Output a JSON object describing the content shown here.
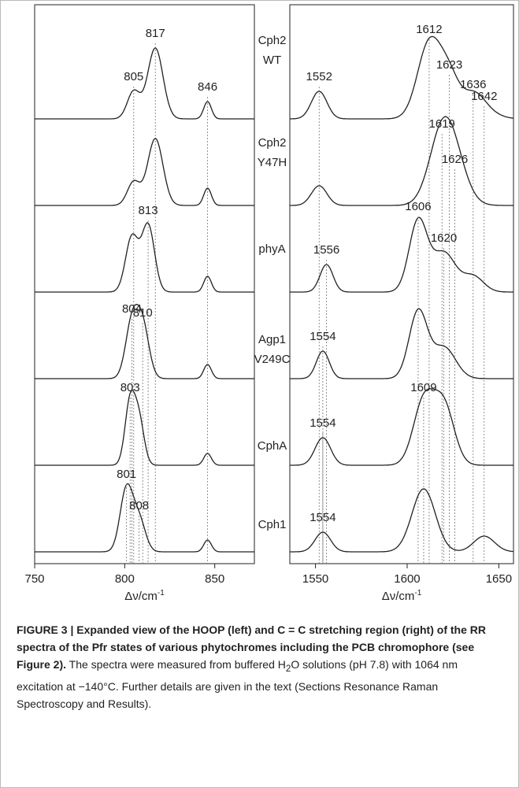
{
  "figure": {
    "samples": [
      {
        "lines": [
          "Cph2",
          "WT"
        ]
      },
      {
        "lines": [
          "Cph2",
          "Y47H"
        ]
      },
      {
        "lines": [
          "phyA"
        ]
      },
      {
        "lines": [
          "Agp1",
          "V249C"
        ]
      },
      {
        "lines": [
          "CphA"
        ]
      },
      {
        "lines": [
          "Cph1"
        ]
      }
    ],
    "panels": [
      {
        "xlim": [
          750,
          872
        ],
        "xticks": [
          750,
          800,
          850
        ],
        "xlabel": "Δν/cm",
        "xlabel_sup": "-1",
        "traces": [
          {
            "peaks": [
              805,
              817,
              846
            ]
          },
          {
            "peaks": []
          },
          {
            "peaks": [
              813
            ]
          },
          {
            "peaks": [
              804,
              810
            ]
          },
          {
            "peaks": [
              803
            ]
          },
          {
            "peaks": [
              801,
              808
            ]
          }
        ]
      },
      {
        "xlim": [
          1536,
          1658
        ],
        "xticks": [
          1550,
          1600,
          1650
        ],
        "xlabel": "Δν/cm",
        "xlabel_sup": "-1",
        "traces": [
          {
            "peaks": [
              1552,
              1612,
              1623,
              1636,
              1642
            ]
          },
          {
            "peaks": [
              1619,
              1626
            ]
          },
          {
            "peaks": [
              1556,
              1606,
              1620
            ]
          },
          {
            "peaks": [
              1554
            ]
          },
          {
            "peaks": [
              1554,
              1609
            ]
          },
          {
            "peaks": [
              1554
            ]
          }
        ]
      }
    ]
  },
  "caption": {
    "bold": "FIGURE 3 | Expanded view of the HOOP (left) and C = C stretching region (right) of the RR spectra of the Pfr states of various phytochromes including the PCB chromophore (see Figure 2).",
    "text_1": "The spectra were measured from buffered H",
    "sub": "2",
    "text_2": "O solutions (pH 7.8) with 1064 nm excitation at −140°C. Further details are given in the text (Sections Resonance Raman Spectroscopy and Results)."
  }
}
